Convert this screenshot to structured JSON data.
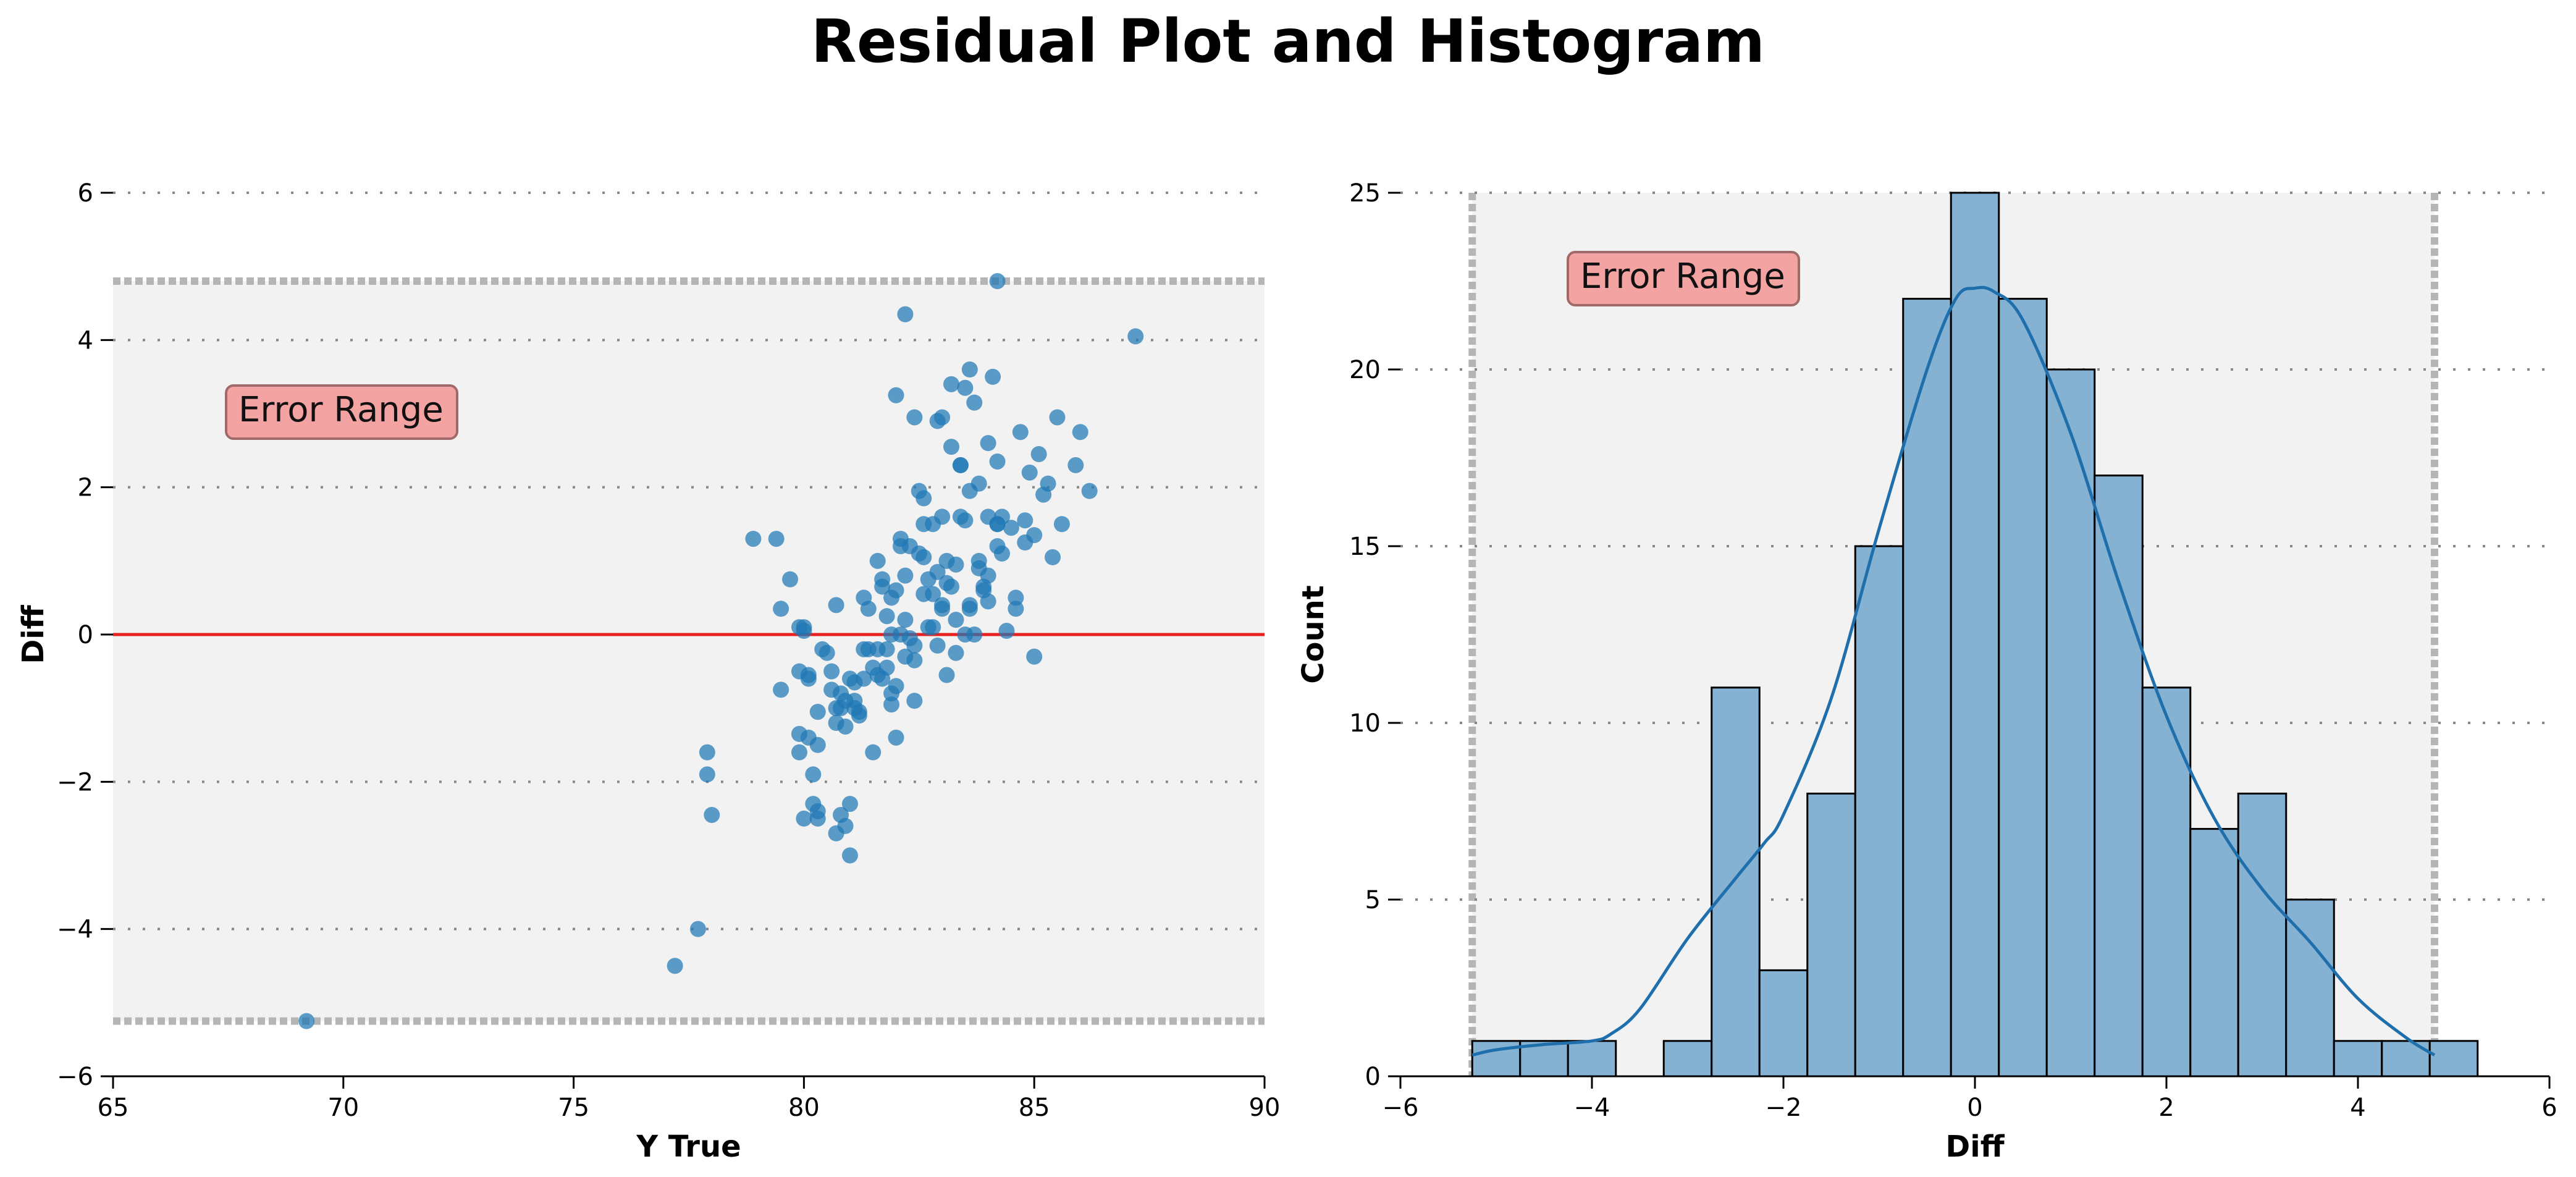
{
  "title": "Residual Plot and Histogram",
  "colors": {
    "points": "#1f77b4",
    "zero_line": "#e8201f",
    "error_band_fill": "#f2f2f2",
    "error_band_edge": "#b5b5b5",
    "annotation_fill": "#f4a3a3",
    "annotation_edge": "#a06a6a",
    "bars": "#85b1d3",
    "kde": "#1f6fad"
  },
  "chart_data": [
    {
      "type": "scatter",
      "xlabel": "Y True",
      "ylabel": "Diff",
      "xlim": [
        65,
        90
      ],
      "ylim": [
        -6,
        6
      ],
      "xticks": [
        65,
        70,
        75,
        80,
        85,
        90
      ],
      "yticks": [
        -6,
        -4,
        -2,
        0,
        2,
        4,
        6
      ],
      "xtick_labels": [
        "65",
        "70",
        "75",
        "80",
        "85",
        "90"
      ],
      "ytick_labels": [
        "−6",
        "−4",
        "−2",
        "0",
        "2",
        "4",
        "6"
      ],
      "grid": "y dotted",
      "reference_line_y": 0,
      "error_range": [
        -5.25,
        4.8
      ],
      "annotation": "Error Range",
      "x": [
        69.2,
        77.2,
        77.7,
        77.9,
        77.9,
        78.0,
        78.9,
        79.4,
        79.5,
        79.5,
        79.7,
        79.9,
        79.9,
        80.0,
        79.9,
        80.1,
        80.0,
        80.1,
        80.2,
        80.3,
        80.3,
        80.2,
        80.3,
        80.3,
        80.0,
        80.1,
        79.9,
        80.5,
        80.6,
        80.7,
        80.7,
        80.7,
        80.9,
        80.9,
        81.0,
        81.0,
        80.8,
        80.8,
        81.1,
        81.2,
        81.3,
        81.2,
        81.1,
        81.3,
        81.4,
        81.5,
        81.6,
        81.7,
        81.8,
        81.9,
        81.6,
        81.7,
        81.9,
        82.0,
        82.1,
        82.0,
        81.9,
        82.2,
        82.2,
        82.3,
        82.2,
        82.4,
        82.4,
        82.5,
        82.6,
        82.6,
        82.7,
        82.8,
        82.8,
        82.9,
        83.0,
        83.0,
        83.1,
        83.1,
        83.2,
        83.2,
        83.3,
        83.4,
        83.4,
        83.5,
        83.6,
        83.6,
        83.7,
        83.8,
        83.8,
        83.9,
        84.0,
        84.0,
        84.1,
        84.2,
        84.2,
        84.3,
        84.4,
        84.5,
        84.6,
        84.7,
        84.8,
        84.9,
        85.0,
        85.1,
        85.2,
        85.3,
        85.4,
        85.5,
        85.6,
        85.9,
        86.0,
        86.2,
        87.2,
        84.2,
        82.2,
        83.6,
        83.4,
        84.2,
        83.0,
        82.1,
        84.0,
        85.0,
        81.8,
        82.6,
        83.3,
        83.7,
        84.6,
        82.4,
        83.1,
        82.0,
        81.5,
        80.7,
        81.3,
        81.6,
        80.9,
        82.8,
        83.0,
        82.1,
        83.5,
        84.0,
        81.8,
        82.4,
        83.9,
        82.9,
        80.4,
        81.0,
        81.9,
        83.3,
        84.2,
        82.7,
        83.6,
        82.3,
        81.1,
        80.6,
        82.9,
        83.8,
        84.3,
        82.5,
        81.4,
        83.2,
        82.0,
        80.8,
        81.7,
        83.5,
        84.8,
        82.6
      ],
      "y": [
        -5.25,
        -4.5,
        -4.0,
        -1.6,
        -1.9,
        -2.45,
        1.3,
        1.3,
        0.35,
        -0.75,
        0.75,
        -0.5,
        -1.35,
        0.05,
        -1.6,
        -0.55,
        0.1,
        -0.6,
        -2.3,
        -2.5,
        -1.05,
        -1.9,
        -2.4,
        -1.5,
        -2.5,
        -1.4,
        0.1,
        -0.25,
        -0.5,
        0.4,
        -2.7,
        -1.2,
        -2.6,
        -0.9,
        -3.0,
        -2.3,
        -2.45,
        -0.8,
        -0.65,
        -1.1,
        -0.6,
        -1.05,
        -0.9,
        0.5,
        0.35,
        -1.6,
        -0.2,
        0.75,
        -0.45,
        -0.8,
        1.0,
        -0.6,
        0.0,
        -1.4,
        1.3,
        -0.7,
        0.5,
        0.8,
        -0.3,
        1.2,
        0.2,
        -0.9,
        2.95,
        1.95,
        0.55,
        1.05,
        0.75,
        1.5,
        0.1,
        2.9,
        1.6,
        0.4,
        0.7,
        1.0,
        2.55,
        3.4,
        0.95,
        2.3,
        1.6,
        3.35,
        0.4,
        1.95,
        3.15,
        1.0,
        2.05,
        0.6,
        2.6,
        1.6,
        3.5,
        1.2,
        2.35,
        1.1,
        0.05,
        1.45,
        0.5,
        2.75,
        1.55,
        2.2,
        1.35,
        2.45,
        1.9,
        2.05,
        1.05,
        2.95,
        1.5,
        2.3,
        2.75,
        1.95,
        4.05,
        4.8,
        4.35,
        3.6,
        2.3,
        1.5,
        2.95,
        1.2,
        0.8,
        -0.3,
        0.25,
        1.5,
        0.2,
        0.0,
        0.35,
        -0.35,
        -0.55,
        3.25,
        -0.45,
        -1.0,
        -0.2,
        -0.55,
        -1.25,
        0.55,
        0.35,
        0.0,
        1.55,
        0.45,
        -0.2,
        -0.15,
        0.65,
        0.85,
        -0.2,
        -0.6,
        -0.95,
        -0.25,
        1.5,
        0.1,
        0.35,
        -0.05,
        -1.0,
        -0.75,
        -0.15,
        0.9,
        1.6,
        1.1,
        -0.2,
        0.65,
        0.6,
        -1.0,
        0.65,
        0.0,
        1.25,
        1.85
      ]
    },
    {
      "type": "bar",
      "subtype": "histogram_with_kde",
      "xlabel": "Diff",
      "ylabel": "Count",
      "xlim": [
        -6,
        6
      ],
      "ylim": [
        0,
        25
      ],
      "xticks": [
        -6,
        -4,
        -2,
        0,
        2,
        4,
        6
      ],
      "yticks": [
        0,
        5,
        10,
        15,
        20,
        25
      ],
      "xtick_labels": [
        "−6",
        "−4",
        "−2",
        "0",
        "2",
        "4",
        "6"
      ],
      "ytick_labels": [
        "0",
        "5",
        "10",
        "15",
        "20",
        "25"
      ],
      "grid": "y dotted",
      "error_range": [
        -5.25,
        4.8
      ],
      "annotation": "Error Range",
      "bin_start": -5.25,
      "bin_width": 0.5,
      "counts": [
        1,
        1,
        1,
        0,
        1,
        11,
        3,
        8,
        15,
        22,
        25,
        22,
        20,
        17,
        11,
        7,
        8,
        5,
        1,
        1,
        1
      ],
      "kde": {
        "x": [
          -5.25,
          -5.0,
          -4.5,
          -4.0,
          -3.8,
          -3.5,
          -3.0,
          -2.5,
          -2.2,
          -2.0,
          -1.5,
          -1.0,
          -0.5,
          -0.2,
          0.0,
          0.2,
          0.5,
          1.0,
          1.5,
          2.0,
          2.5,
          3.0,
          3.5,
          4.0,
          4.5,
          4.8
        ],
        "y": [
          0.6,
          0.75,
          0.9,
          1.0,
          1.2,
          1.9,
          3.9,
          5.6,
          6.6,
          7.4,
          10.7,
          15.5,
          20.0,
          22.0,
          22.3,
          22.2,
          21.4,
          18.2,
          14.0,
          10.2,
          7.3,
          5.3,
          3.8,
          2.2,
          1.1,
          0.6
        ]
      }
    }
  ]
}
